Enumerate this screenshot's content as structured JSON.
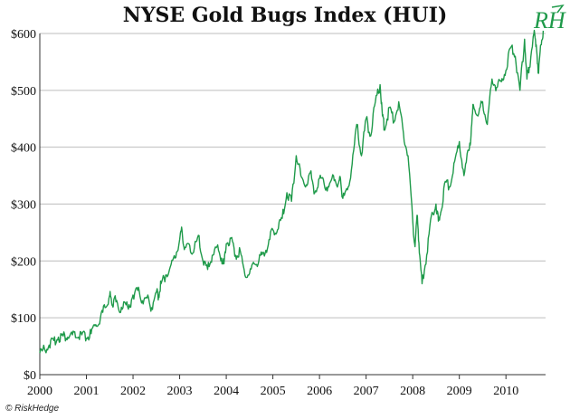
{
  "title": "NYSE Gold Bugs Index (HUI)",
  "logo_text": "RH",
  "copyright": "© RiskHedge",
  "colors": {
    "line": "#1f9a4a",
    "grid": "#bdbdbd",
    "axis": "#333333",
    "logo": "#1f9a4a"
  },
  "chart_data": {
    "type": "line",
    "title": "NYSE Gold Bugs Index (HUI)",
    "xlabel": "",
    "ylabel": "",
    "xlim": [
      2000,
      2010.85
    ],
    "ylim": [
      0,
      600
    ],
    "grid": "horizontal",
    "x_ticks": [
      "2000",
      "2001",
      "2002",
      "2003",
      "2004",
      "2005",
      "2006",
      "2007",
      "2008",
      "2009",
      "2010"
    ],
    "y_ticks": [
      "$0",
      "$100",
      "$200",
      "$300",
      "$400",
      "$500",
      "$600"
    ],
    "series": [
      {
        "x": [
          2000.0,
          2000.1,
          2000.2,
          2000.3,
          2000.4,
          2000.5,
          2000.6,
          2000.7,
          2000.8,
          2000.9,
          2001.0,
          2001.1,
          2001.2,
          2001.3,
          2001.4,
          2001.5,
          2001.55,
          2001.6,
          2001.7,
          2001.8,
          2001.9,
          2002.0,
          2002.1,
          2002.2,
          2002.3,
          2002.4,
          2002.5,
          2002.55,
          2002.6,
          2002.7,
          2002.8,
          2002.9,
          2003.0,
          2003.05,
          2003.1,
          2003.2,
          2003.3,
          2003.4,
          2003.5,
          2003.6,
          2003.7,
          2003.8,
          2003.9,
          2003.95,
          2004.0,
          2004.1,
          2004.2,
          2004.3,
          2004.4,
          2004.5,
          2004.6,
          2004.7,
          2004.8,
          2004.9,
          2005.0,
          2005.1,
          2005.2,
          2005.3,
          2005.4,
          2005.5,
          2005.6,
          2005.7,
          2005.8,
          2005.9,
          2006.0,
          2006.1,
          2006.2,
          2006.3,
          2006.4,
          2006.45,
          2006.5,
          2006.6,
          2006.7,
          2006.8,
          2006.9,
          2007.0,
          2007.1,
          2007.2,
          2007.3,
          2007.35,
          2007.4,
          2007.5,
          2007.6,
          2007.7,
          2007.8,
          2007.9,
          2008.0,
          2008.05,
          2008.1,
          2008.15,
          2008.2,
          2008.3,
          2008.4,
          2008.5,
          2008.55,
          2008.6,
          2008.7,
          2008.8,
          2008.9,
          2009.0,
          2009.1,
          2009.2,
          2009.25,
          2009.3,
          2009.4,
          2009.5,
          2009.6,
          2009.7,
          2009.8,
          2009.9,
          2010.0,
          2010.1,
          2010.2,
          2010.3,
          2010.4,
          2010.45,
          2010.5,
          2010.6,
          2010.65,
          2010.7,
          2010.75,
          2010.8
        ],
        "y": [
          38,
          45,
          52,
          60,
          66,
          68,
          66,
          70,
          65,
          70,
          64,
          72,
          88,
          100,
          118,
          140,
          122,
          135,
          112,
          128,
          115,
          140,
          148,
          130,
          135,
          118,
          145,
          140,
          160,
          175,
          190,
          205,
          238,
          255,
          220,
          230,
          215,
          245,
          200,
          185,
          210,
          225,
          205,
          195,
          230,
          240,
          210,
          218,
          175,
          178,
          195,
          200,
          215,
          228,
          255,
          255,
          275,
          320,
          305,
          385,
          350,
          330,
          355,
          320,
          345,
          335,
          330,
          350,
          335,
          345,
          310,
          325,
          370,
          440,
          385,
          450,
          420,
          480,
          510,
          455,
          430,
          470,
          445,
          480,
          425,
          385,
          270,
          225,
          280,
          210,
          160,
          210,
          280,
          300,
          270,
          285,
          340,
          330,
          375,
          410,
          350,
          395,
          420,
          475,
          455,
          480,
          440,
          520,
          505,
          515,
          535,
          575,
          560,
          500,
          590,
          520,
          540,
          600,
          580,
          530,
          580,
          605
        ]
      }
    ]
  }
}
